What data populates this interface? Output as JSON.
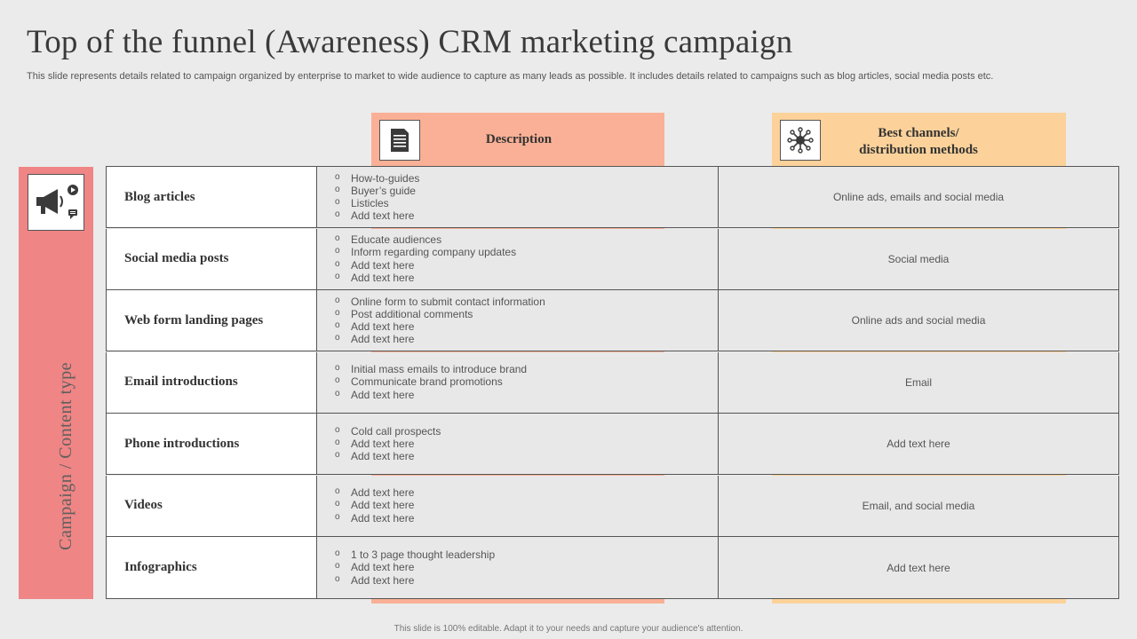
{
  "title": "Top of the funnel (Awareness) CRM marketing campaign",
  "subtitle": "This slide represents details related to campaign organized by enterprise to market to wide audience to capture as many leads as possible. It includes details related to campaigns such as blog articles, social media posts etc.",
  "side_label": "Campaign / Content type",
  "headers": {
    "description": "Description",
    "channels_line1": "Best channels/",
    "channels_line2": "distribution methods"
  },
  "icons": {
    "description": "document-icon",
    "channels": "network-hub-icon",
    "side": "megaphone-icon"
  },
  "colors": {
    "description_band": "#f9b096",
    "channels_band": "#fcd29a",
    "side_band": "#ef8585"
  },
  "rows": [
    {
      "type": "Blog articles",
      "desc": [
        "How-to-guides",
        "Buyer’s guide",
        "Listicles",
        "Add text here"
      ],
      "channels": "Online ads, emails and social media"
    },
    {
      "type": "Social media posts",
      "desc": [
        "Educate audiences",
        "Inform regarding company updates",
        "Add text here",
        "Add text here"
      ],
      "channels": "Social media"
    },
    {
      "type": "Web form landing pages",
      "desc": [
        "Online form to  submit contact information",
        "Post additional comments",
        "Add text here",
        "Add text here"
      ],
      "channels": "Online ads and social media"
    },
    {
      "type": "Email introductions",
      "desc": [
        "Initial mass emails to introduce brand",
        "Communicate brand promotions",
        "Add text here"
      ],
      "channels": "Email"
    },
    {
      "type": "Phone introductions",
      "desc": [
        "Cold call prospects",
        "Add text here",
        "Add text here"
      ],
      "channels": "Add text here"
    },
    {
      "type": "Videos",
      "desc": [
        "Add text here",
        "Add text here",
        "Add text here"
      ],
      "channels": "Email, and social media"
    },
    {
      "type": "Infographics",
      "desc": [
        "1 to 3 page thought leadership",
        "Add text here",
        "Add text here"
      ],
      "channels": "Add text here"
    }
  ],
  "footer": "This slide is 100% editable.  Adapt it to your needs and capture your audience's attention."
}
